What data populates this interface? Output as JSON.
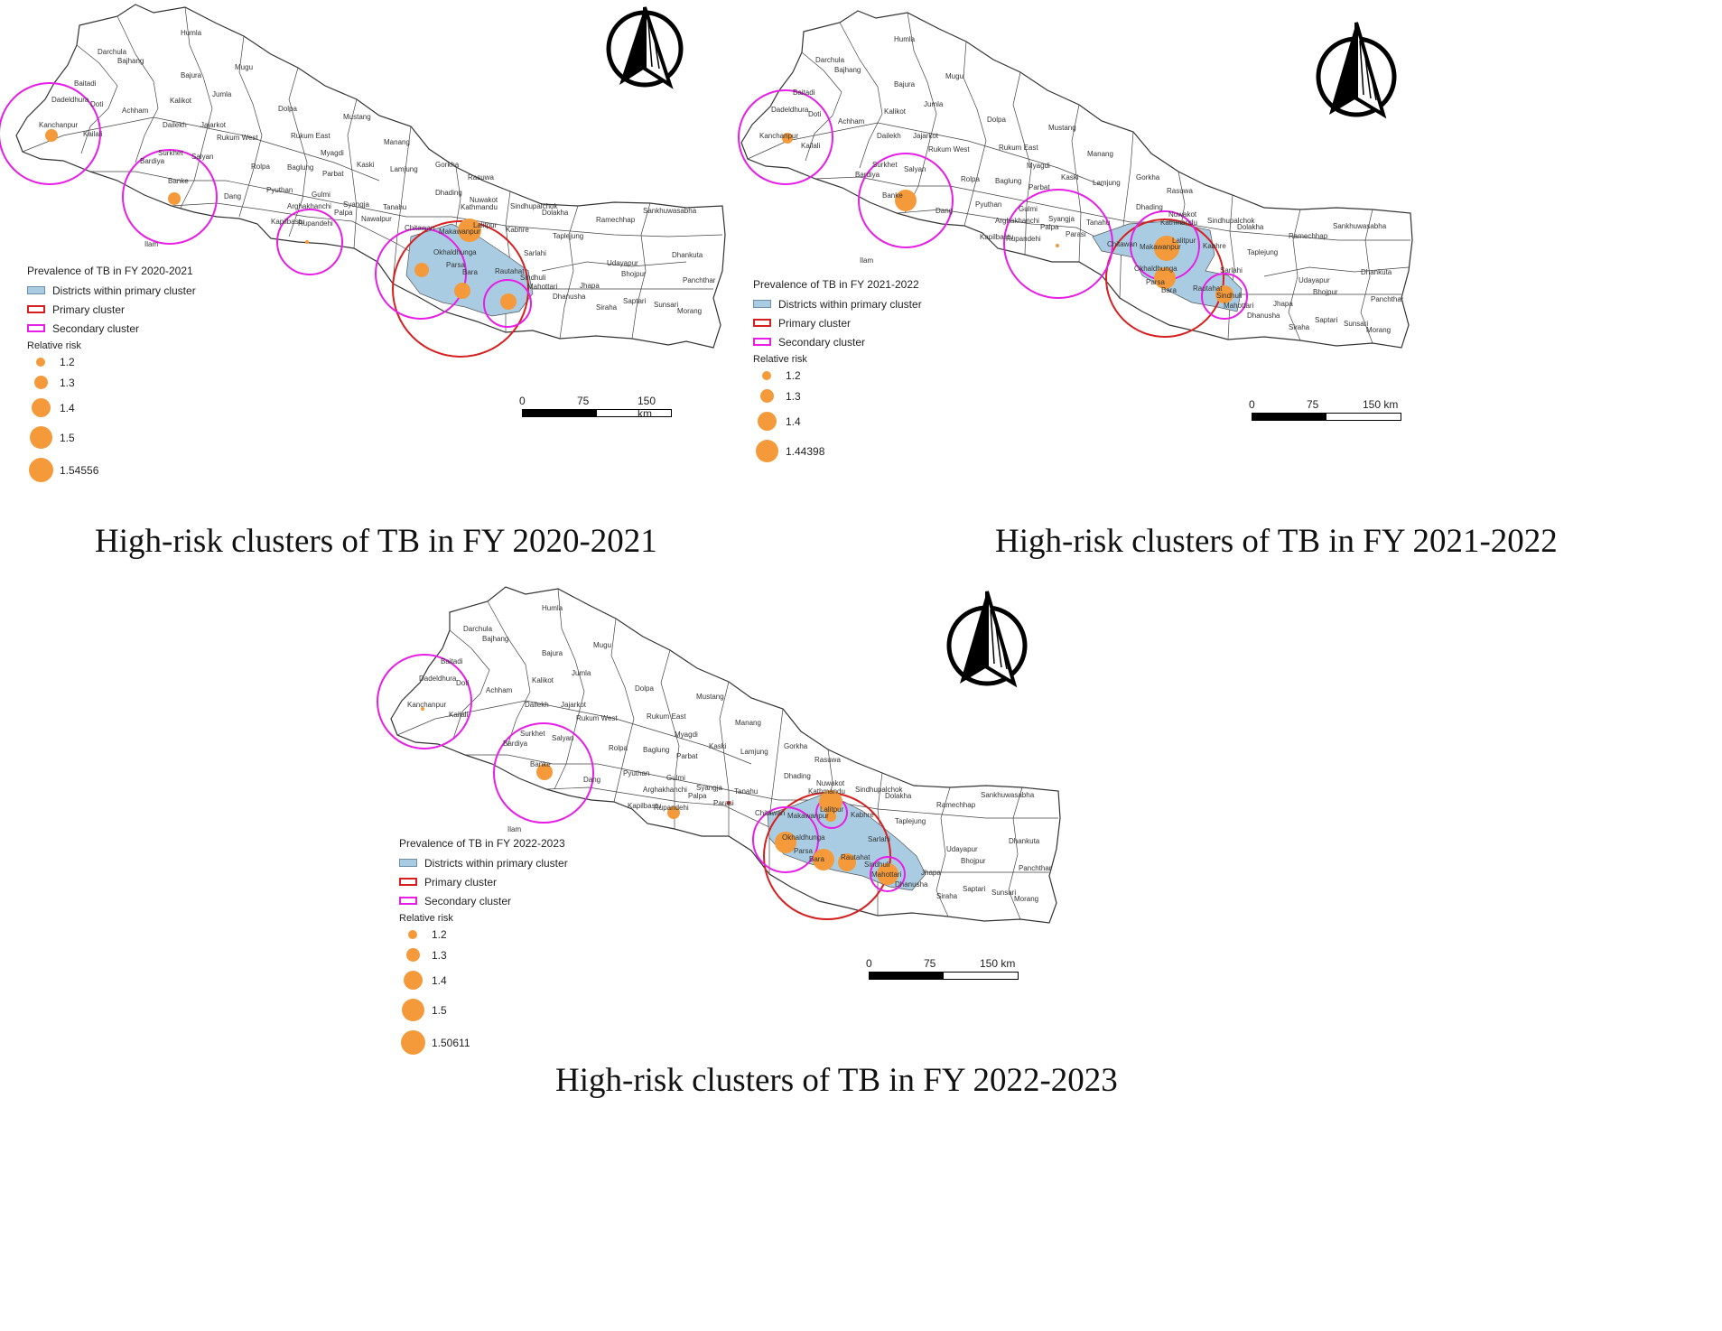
{
  "panels": [
    {
      "id": "p2021",
      "caption": "High-risk clusters of TB in FY 2020-2021",
      "legend": {
        "title": "Prevalence of TB in FY 2020-2021",
        "fill_label": "Districts within primary cluster",
        "primary_label": "Primary cluster",
        "secondary_label": "Secondary cluster",
        "rr_title": "Relative risk",
        "rr_items": [
          "1.2",
          "1.3",
          "1.4",
          "1.5",
          "1.54556"
        ]
      },
      "scale": {
        "zero": "0",
        "mid": "75",
        "end": "150 km"
      },
      "district_labels": [
        "Darchula",
        "Humla",
        "Bajhang",
        "Bajura",
        "Mugu",
        "Baitadi",
        "Jumla",
        "Dadeldhura",
        "Doti",
        "Achham",
        "Kalikot",
        "Dolpa",
        "Kanchanpur",
        "Kailali",
        "Dailekh",
        "Jajarkot",
        "Mustang",
        "Rukum West",
        "Rukum East",
        "Surkhet",
        "Salyan",
        "Manang",
        "Myagdi",
        "Bardiya",
        "Banke",
        "Rolpa",
        "Baglung",
        "Kaski",
        "Lamjung",
        "Gorkha",
        "Rasuwa",
        "Parbat",
        "Pyuthan",
        "Gulmi",
        "Dang",
        "Syangja",
        "Tanahu",
        "Dhading",
        "Nuwakot",
        "Sindhupalchok",
        "Arghakhanchi",
        "Palpa",
        "Kathmandu",
        "Dolakha",
        "Kapilbastu",
        "Rupandehi",
        "Nawalpur",
        "Chitawan",
        "Makawanpur",
        "Lalitpur",
        "Kabhre",
        "Ramechhap",
        "Sankhuwasabha",
        "Taplejung",
        "Okhaldhunga",
        "Parsa",
        "Bara",
        "Rautahat",
        "Sarlahi",
        "Sindhuli",
        "Mahottari",
        "Dhanusha",
        "Siraha",
        "Saptari",
        "Sunsari",
        "Morang",
        "Jhapa",
        "Udayapur",
        "Bhojpur",
        "Dhankuta",
        "Panchthar",
        "Ilam"
      ]
    },
    {
      "id": "p2122",
      "caption": "High-risk clusters of TB in FY 2021-2022",
      "legend": {
        "title": "Prevalence of TB in FY 2021-2022",
        "fill_label": "Districts within primary cluster",
        "primary_label": "Primary cluster",
        "secondary_label": "Secondary cluster",
        "rr_title": "Relative risk",
        "rr_items": [
          "1.2",
          "1.3",
          "1.4",
          "1.44398"
        ]
      },
      "scale": {
        "zero": "0",
        "mid": "75",
        "end": "150 km"
      },
      "district_labels": [
        "Darchula",
        "Humla",
        "Bajhang",
        "Bajura",
        "Mugu",
        "Baitadi",
        "Jumla",
        "Dadeldhura",
        "Doti",
        "Achham",
        "Kalikot",
        "Dolpa",
        "Kanchanpur",
        "Kailali",
        "Dailekh",
        "Jajarkot",
        "Mustang",
        "Rukum West",
        "Rukum East",
        "Surkhet",
        "Salyan",
        "Manang",
        "Myagdi",
        "Bardiya",
        "Banke",
        "Rolpa",
        "Baglung",
        "Kaski",
        "Lamjung",
        "Gorkha",
        "Rasuwa",
        "Parbat",
        "Pyuthan",
        "Gulmi",
        "Dang",
        "Syangja",
        "Tanahu",
        "Dhading",
        "Nuwakot",
        "Sindhupalchok",
        "Arghakhanchi",
        "Palpa",
        "Kathmandu",
        "Dolakha",
        "Kapilbastu",
        "Rupandehi",
        "Parasi",
        "Chitawan",
        "Makawanpur",
        "Lalitpur",
        "Kabhre",
        "Ramechhap",
        "Sankhuwasabha",
        "Taplejung",
        "Okhaldhunga",
        "Parsa",
        "Bara",
        "Rautahat",
        "Sarlahi",
        "Sindhuli",
        "Mahottari",
        "Dhanusha",
        "Siraha",
        "Saptari",
        "Sunsari",
        "Morang",
        "Jhapa",
        "Udayapur",
        "Bhojpur",
        "Dhankuta",
        "Panchthar",
        "Ilam"
      ]
    },
    {
      "id": "p2223",
      "caption": "High-risk clusters of TB in FY 2022-2023",
      "legend": {
        "title": "Prevalence of TB in FY 2022-2023",
        "fill_label": "Districts within primary cluster",
        "primary_label": "Primary cluster",
        "secondary_label": "Secondary cluster",
        "rr_title": "Relative risk",
        "rr_items": [
          "1.2",
          "1.3",
          "1.4",
          "1.5",
          "1.50611"
        ]
      },
      "scale": {
        "zero": "0",
        "mid": "75",
        "end": "150 km"
      },
      "district_labels": [
        "Darchula",
        "Humla",
        "Bajhang",
        "Bajura",
        "Mugu",
        "Baitadi",
        "Jumla",
        "Dadeldhura",
        "Doti",
        "Achham",
        "Kalikot",
        "Dolpa",
        "Kanchanpur",
        "Kailali",
        "Dailekh",
        "Jajarkot",
        "Mustang",
        "Rukum West",
        "Rukum East",
        "Surkhet",
        "Salyan",
        "Manang",
        "Myagdi",
        "Bardiya",
        "Banke",
        "Rolpa",
        "Baglung",
        "Kaski",
        "Lamjung",
        "Gorkha",
        "Rasuwa",
        "Parbat",
        "Pyuthan",
        "Gulmi",
        "Dang",
        "Syangja",
        "Tanahu",
        "Dhading",
        "Nuwakot",
        "Sindhupalchok",
        "Arghakhanchi",
        "Palpa",
        "Kathmandu",
        "Dolakha",
        "Kapilbastu",
        "Rupandehi",
        "Parasi",
        "Chitawan",
        "Makawanpur",
        "Lalitpur",
        "Kabhre",
        "Ramechhap",
        "Sankhuwasabha",
        "Taplejung",
        "Okhaldhunga",
        "Parsa",
        "Bara",
        "Rautahat",
        "Sarlahi",
        "Sindhuli",
        "Mahottari",
        "Dhanusha",
        "Siraha",
        "Saptari",
        "Sunsari",
        "Morang",
        "Jhapa",
        "Udayapur",
        "Bhojpur",
        "Dhankuta",
        "Panchthar",
        "Ilam"
      ]
    }
  ],
  "colors": {
    "primary_cluster": "#d62020",
    "secondary_cluster": "#e61ee6",
    "cluster_fill": "#a9cce3",
    "risk_dot": "#f49a3a",
    "district_border": "#333333"
  },
  "icons": {
    "north_arrow": "north-arrow-icon"
  }
}
